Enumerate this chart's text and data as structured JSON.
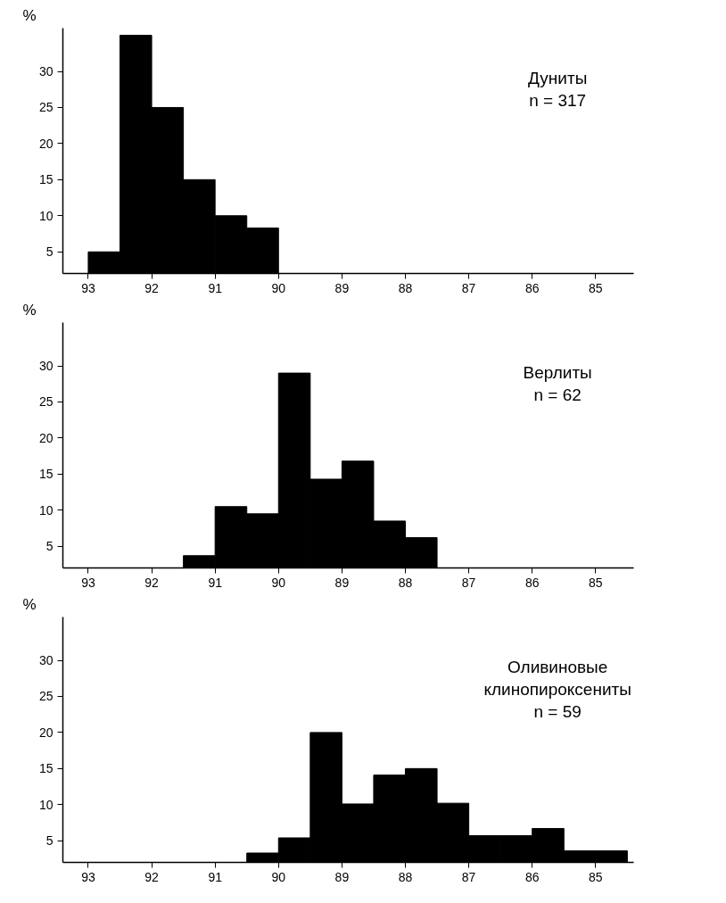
{
  "chart_data": [
    {
      "type": "histogram",
      "ylabel": "%",
      "bins": [
        93,
        92.5,
        92,
        91.5,
        91,
        90.5,
        90
      ],
      "values": [
        5,
        35,
        25,
        15,
        10,
        8.3
      ],
      "color": "#000000",
      "xlim": [
        93.4,
        84.4
      ],
      "ylim": [
        2,
        36
      ],
      "xticks": [
        93,
        92,
        91,
        90,
        89,
        88,
        87,
        86,
        85
      ],
      "yticks": [
        5,
        10,
        15,
        20,
        25,
        30
      ],
      "grid": false,
      "annotations": [
        "Дуниты\nn = 317"
      ]
    },
    {
      "type": "histogram",
      "ylabel": "%",
      "bins": [
        91.5,
        91,
        90.5,
        90,
        89.5,
        89,
        88.5,
        88,
        87.5
      ],
      "values": [
        3.7,
        10.5,
        9.5,
        29,
        14.3,
        16.8,
        8.5,
        6.2
      ],
      "color": "#000000",
      "xlim": [
        93.4,
        84.4
      ],
      "ylim": [
        2,
        36
      ],
      "xticks": [
        93,
        92,
        91,
        90,
        89,
        88,
        87,
        86,
        85
      ],
      "yticks": [
        5,
        10,
        15,
        20,
        25,
        30
      ],
      "grid": false,
      "annotations": [
        "Верлиты\nn = 62"
      ]
    },
    {
      "type": "histogram",
      "ylabel": "%",
      "bins": [
        90.5,
        90,
        89.5,
        89,
        88.5,
        88,
        87.5,
        87,
        86.5,
        86,
        85.5,
        85,
        84.5
      ],
      "values": [
        3.3,
        5.4,
        20,
        10.1,
        14.1,
        15,
        10.2,
        5.7,
        5.7,
        6.7,
        3.6,
        3.6
      ],
      "color": "#000000",
      "xlim": [
        93.4,
        84.4
      ],
      "ylim": [
        2,
        36
      ],
      "xticks": [
        93,
        92,
        91,
        90,
        89,
        88,
        87,
        86,
        85
      ],
      "yticks": [
        5,
        10,
        15,
        20,
        25,
        30
      ],
      "grid": false,
      "annotations": [
        "Оливиновые\nклинопироксениты\nn = 59"
      ]
    }
  ]
}
